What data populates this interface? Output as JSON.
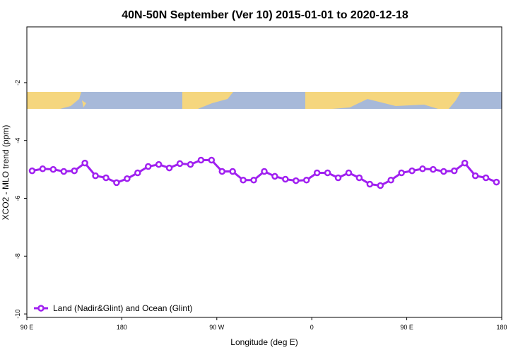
{
  "chart_data": {
    "type": "line",
    "title": "40N-50N September (Ver 10)   2015-01-01 to 2020-12-18",
    "x_label": "Longitude (deg E)",
    "y_label": "XCO2 - MLO trend (ppm)",
    "x": [
      95,
      105,
      115,
      125,
      135,
      145,
      155,
      165,
      175,
      185,
      195,
      205,
      215,
      225,
      235,
      245,
      255,
      265,
      275,
      285,
      295,
      305,
      315,
      325,
      335,
      345,
      355,
      365,
      375,
      385,
      395,
      405,
      415,
      425,
      435,
      445,
      455,
      465,
      475,
      485,
      495,
      505,
      515,
      525,
      535
    ],
    "series": [
      {
        "name": "Land (Nadir&Glint) and Ocean (Glint)",
        "color": "#a020f0",
        "values": [
          -5.05,
          -4.98,
          -5.0,
          -5.07,
          -5.05,
          -4.78,
          -5.22,
          -5.29,
          -5.46,
          -5.32,
          -5.12,
          -4.9,
          -4.83,
          -4.95,
          -4.8,
          -4.83,
          -4.68,
          -4.68,
          -5.07,
          -5.07,
          -5.37,
          -5.37,
          -5.07,
          -5.24,
          -5.34,
          -5.39,
          -5.37,
          -5.12,
          -5.12,
          -5.29,
          -5.12,
          -5.29,
          -5.51,
          -5.56,
          -5.37,
          -5.12,
          -5.05,
          -4.98,
          -5.0,
          -5.07,
          -5.05,
          -4.78,
          -5.22,
          -5.29,
          -5.44
        ]
      }
    ],
    "xlim": [
      90,
      540
    ],
    "xticks": [
      {
        "value": 90,
        "label": "90 E"
      },
      180,
      {
        "value": 270,
        "label": "90 W"
      },
      {
        "value": 360,
        "label": "0"
      },
      {
        "value": 450,
        "label": "90 E"
      },
      {
        "value": 540,
        "label": "180"
      }
    ],
    "ylim": [
      -10.12,
      -0.07
    ],
    "yticks": [
      -10,
      -8,
      -6,
      -4,
      -2
    ],
    "legend": "bottomleft"
  }
}
